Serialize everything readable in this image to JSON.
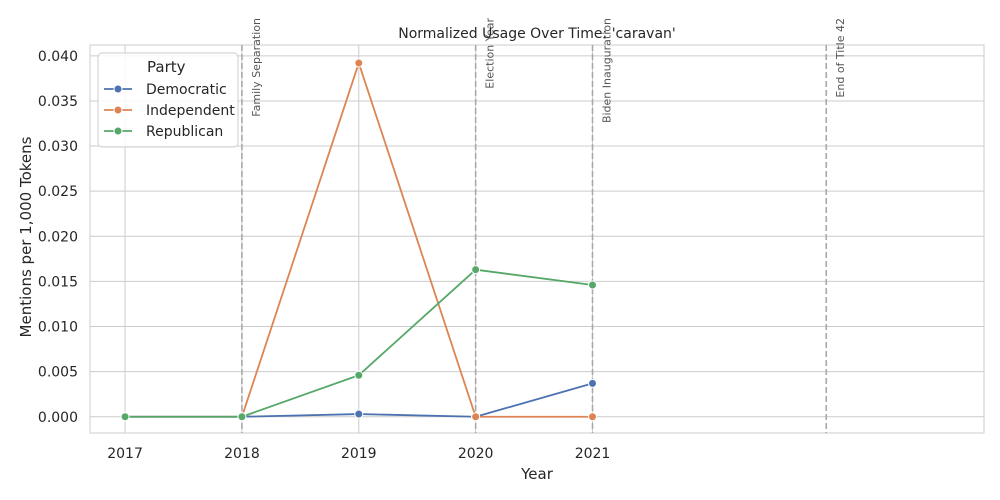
{
  "chart_data": {
    "type": "line",
    "title": "Normalized Usage Over Time: 'caravan'",
    "xlabel": "Year",
    "ylabel": "Mentions per 1,000 Tokens",
    "x": [
      2017,
      2018,
      2019,
      2020,
      2021
    ],
    "x_ticks": [
      "2017",
      "2018",
      "2019",
      "2020",
      "2021"
    ],
    "xlim": [
      2016.7,
      2024.35
    ],
    "ylim": [
      -0.0018,
      0.0412
    ],
    "y_ticks": [
      0.0,
      0.005,
      0.01,
      0.015,
      0.02,
      0.025,
      0.03,
      0.035,
      0.04
    ],
    "y_tick_labels": [
      "0.000",
      "0.005",
      "0.010",
      "0.015",
      "0.020",
      "0.025",
      "0.030",
      "0.035",
      "0.040"
    ],
    "grid": true,
    "legend_position": "top-left",
    "legend_title": "Party",
    "series": [
      {
        "name": "Democratic",
        "color": "#4c72b0",
        "x": [
          2017,
          2018,
          2019,
          2020,
          2021
        ],
        "values": [
          0.0,
          0.0,
          0.0003,
          0.0,
          0.0037
        ]
      },
      {
        "name": "Independent",
        "color": "#dd8452",
        "x": [
          2017,
          2018,
          2019,
          2020,
          2021
        ],
        "values": [
          0.0,
          0.0,
          0.0392,
          0.0,
          0.0
        ]
      },
      {
        "name": "Republican",
        "color": "#55a868",
        "x": [
          2017,
          2018,
          2019,
          2020,
          2021
        ],
        "values": [
          0.0,
          0.0,
          0.0046,
          0.0163,
          0.0146
        ]
      }
    ],
    "events": [
      {
        "x": 2018,
        "label": "Family Separation"
      },
      {
        "x": 2020,
        "label": "Election Year"
      },
      {
        "x": 2021,
        "label": "Biden Inauguration"
      },
      {
        "x": 2023,
        "label": "End of Title 42"
      }
    ]
  }
}
